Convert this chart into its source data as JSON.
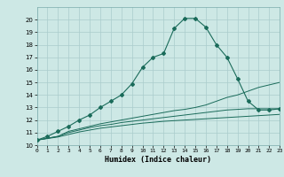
{
  "xlabel": "Humidex (Indice chaleur)",
  "xlim": [
    0,
    23
  ],
  "ylim": [
    10,
    21
  ],
  "yticks": [
    10,
    11,
    12,
    13,
    14,
    15,
    16,
    17,
    18,
    19,
    20
  ],
  "xticks": [
    0,
    1,
    2,
    3,
    4,
    5,
    6,
    7,
    8,
    9,
    10,
    11,
    12,
    13,
    14,
    15,
    16,
    17,
    18,
    19,
    20,
    21,
    22,
    23
  ],
  "bg_color": "#cde8e5",
  "grid_color": "#aacccc",
  "line_color": "#1a6b5a",
  "line1_x": [
    0,
    1,
    2,
    3,
    4,
    5,
    6,
    7,
    8,
    9,
    10,
    11,
    12,
    13,
    14,
    15,
    16,
    17,
    18,
    19,
    20,
    21,
    22,
    23
  ],
  "line1_y": [
    10.4,
    10.7,
    11.1,
    11.5,
    12.0,
    12.4,
    13.0,
    13.5,
    14.0,
    14.9,
    16.2,
    17.0,
    17.3,
    19.3,
    20.1,
    20.1,
    19.4,
    18.0,
    17.0,
    15.3,
    13.5,
    12.8,
    12.8,
    12.9
  ],
  "line2_x": [
    0,
    2,
    3,
    4,
    5,
    6,
    7,
    8,
    9,
    10,
    11,
    12,
    13,
    14,
    15,
    16,
    17,
    18,
    19,
    20,
    21,
    22,
    23
  ],
  "line2_y": [
    10.4,
    10.7,
    11.1,
    11.3,
    11.5,
    11.7,
    11.85,
    12.0,
    12.15,
    12.3,
    12.45,
    12.6,
    12.75,
    12.85,
    13.0,
    13.2,
    13.5,
    13.8,
    14.0,
    14.3,
    14.6,
    14.8,
    15.0
  ],
  "line3_x": [
    0,
    2,
    3,
    4,
    5,
    6,
    7,
    8,
    9,
    10,
    11,
    12,
    13,
    14,
    15,
    16,
    17,
    18,
    19,
    20,
    21,
    22,
    23
  ],
  "line3_y": [
    10.4,
    10.7,
    11.0,
    11.2,
    11.4,
    11.55,
    11.65,
    11.8,
    11.9,
    12.0,
    12.1,
    12.2,
    12.3,
    12.4,
    12.5,
    12.6,
    12.7,
    12.8,
    12.85,
    12.9,
    12.9,
    12.9,
    12.9
  ],
  "line4_x": [
    0,
    2,
    3,
    4,
    5,
    6,
    7,
    8,
    9,
    10,
    11,
    12,
    13,
    14,
    15,
    16,
    17,
    18,
    19,
    20,
    21,
    22,
    23
  ],
  "line4_y": [
    10.4,
    10.65,
    10.85,
    11.05,
    11.2,
    11.35,
    11.45,
    11.55,
    11.65,
    11.75,
    11.82,
    11.9,
    11.95,
    12.0,
    12.05,
    12.1,
    12.15,
    12.2,
    12.25,
    12.3,
    12.35,
    12.4,
    12.45
  ]
}
